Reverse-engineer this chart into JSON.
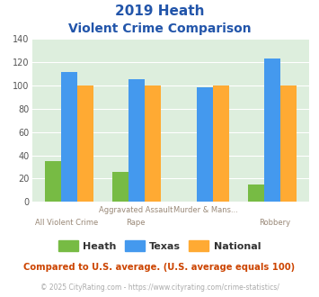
{
  "title_line1": "2019 Heath",
  "title_line2": "Violent Crime Comparison",
  "groups": [
    {
      "label_top": "",
      "label_bottom": "All Violent Crime",
      "heath": 35,
      "texas": 111,
      "national": 100
    },
    {
      "label_top": "Aggravated Assault",
      "label_bottom": "Rape",
      "heath": 26,
      "texas": 105,
      "national": 100
    },
    {
      "label_top": "Murder & Mans...",
      "label_bottom": "",
      "heath": 0,
      "texas": 98,
      "national": 100
    },
    {
      "label_top": "",
      "label_bottom": "Robbery",
      "heath": 15,
      "texas": 123,
      "national": 100
    }
  ],
  "heath_color": "#77bb44",
  "texas_color": "#4499ee",
  "national_color": "#ffaa33",
  "bg_color": "#ddeedd",
  "ylim": [
    0,
    140
  ],
  "yticks": [
    0,
    20,
    40,
    60,
    80,
    100,
    120,
    140
  ],
  "footnote": "Compared to U.S. average. (U.S. average equals 100)",
  "copyright": "© 2025 CityRating.com - https://www.cityrating.com/crime-statistics/",
  "title_color": "#2255aa",
  "label_color_top": "#998877",
  "label_color_bottom": "#998877",
  "footnote_color": "#cc4400",
  "copyright_color": "#aaaaaa",
  "legend_text_color": "#333333"
}
